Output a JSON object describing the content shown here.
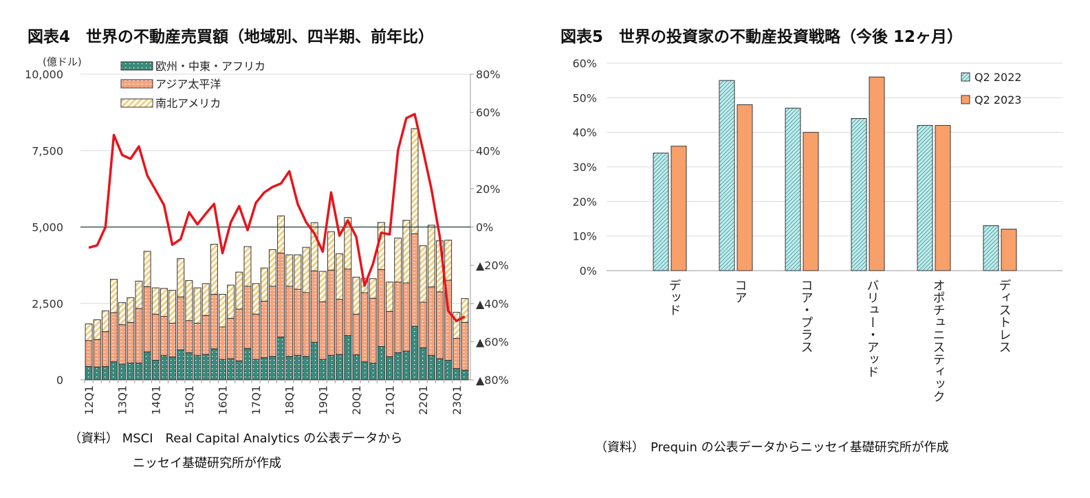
{
  "figure4": {
    "title": "図表4　世界の不動産売買額（地域別、四半期、前年比）",
    "source_line1": "（資料） MSCI　Real Capital Analytics の公表データから",
    "source_line2": "ニッセイ基礎研究所が作成"
  },
  "figure5": {
    "title": "図表5　世界の投資家の不動産投資戦略（今後 12ヶ月）",
    "source": "（資料）　Prequin の公表データからニッセイ基礎研究所が作成"
  },
  "chart_data": [
    {
      "type": "bar",
      "stacked": true,
      "left_unit": "(億ドル)",
      "ylim": [
        0,
        10000
      ],
      "y_ticks": [
        "0",
        "2,500",
        "5,000",
        "7,500",
        "10,000"
      ],
      "y2lim": [
        -80,
        80
      ],
      "y2_ticks": [
        "▲80%",
        "▲60%",
        "▲40%",
        "▲20%",
        "0%",
        "20%",
        "40%",
        "60%",
        "80%"
      ],
      "x_tick_labels": [
        "12Q1",
        "13Q1",
        "14Q1",
        "15Q1",
        "16Q1",
        "17Q1",
        "18Q1",
        "19Q1",
        "20Q1",
        "21Q1",
        "22Q1",
        "23Q1"
      ],
      "categories": [
        "12Q1",
        "12Q2",
        "12Q3",
        "12Q4",
        "13Q1",
        "13Q2",
        "13Q3",
        "13Q4",
        "14Q1",
        "14Q2",
        "14Q3",
        "14Q4",
        "15Q1",
        "15Q2",
        "15Q3",
        "15Q4",
        "16Q1",
        "16Q2",
        "16Q3",
        "16Q4",
        "17Q1",
        "17Q2",
        "17Q3",
        "17Q4",
        "18Q1",
        "18Q2",
        "18Q3",
        "18Q4",
        "19Q1",
        "19Q2",
        "19Q3",
        "19Q4",
        "20Q1",
        "20Q2",
        "20Q3",
        "20Q4",
        "21Q1",
        "21Q2",
        "21Q3",
        "21Q4",
        "22Q1",
        "22Q2",
        "22Q3",
        "22Q4",
        "23Q1",
        "23Q2"
      ],
      "legend_position": "top-left",
      "colors": {
        "emea": "#3a8a7c",
        "apac": "#f4a27c",
        "americas": "#f0cf80",
        "yoy": "#e8141c"
      },
      "series": [
        {
          "name": "欧州・中東・アフリカ",
          "values": [
            440,
            420,
            440,
            590,
            515,
            555,
            555,
            915,
            640,
            795,
            750,
            980,
            890,
            795,
            830,
            1015,
            670,
            690,
            620,
            1025,
            670,
            725,
            770,
            1400,
            770,
            800,
            770,
            1230,
            670,
            800,
            830,
            1450,
            820,
            590,
            550,
            1090,
            760,
            890,
            940,
            1750,
            1050,
            800,
            690,
            640,
            370,
            320
          ]
        },
        {
          "name": "アジア太平洋",
          "values": [
            845,
            900,
            1140,
            1610,
            1290,
            1325,
            1780,
            2135,
            1510,
            1280,
            1105,
            1735,
            1050,
            1060,
            1275,
            1785,
            1060,
            1325,
            1695,
            2040,
            1480,
            1850,
            2295,
            2750,
            2295,
            2165,
            2085,
            2335,
            1885,
            2790,
            1805,
            2175,
            1330,
            2260,
            2120,
            2520,
            1480,
            2310,
            2230,
            3030,
            1490,
            2240,
            2190,
            2620,
            990,
            1560
          ]
        },
        {
          "name": "南北アメリカ",
          "values": [
            545,
            645,
            675,
            1090,
            720,
            810,
            895,
            1155,
            860,
            915,
            1075,
            1250,
            1310,
            1155,
            1045,
            1635,
            1070,
            1085,
            1210,
            1295,
            1000,
            1085,
            1195,
            1215,
            1025,
            1125,
            1480,
            1580,
            995,
            1255,
            1490,
            1685,
            1210,
            460,
            640,
            1540,
            960,
            1440,
            2050,
            3440,
            1850,
            2020,
            1670,
            1310,
            850,
            780
          ]
        },
        {
          "name": "前年比",
          "axis": "right",
          "values": [
            -10.8,
            -9.6,
            0,
            48.2,
            37.7,
            35.7,
            42.2,
            27,
            19.3,
            11.5,
            -9.3,
            -6.3,
            7.7,
            1.4,
            7,
            12.1,
            -13.7,
            2.6,
            10.9,
            -1.6,
            12.7,
            18.1,
            21,
            22.8,
            29.2,
            12.1,
            2.6,
            -3.4,
            -12.9,
            18.1,
            -4.5,
            3.4,
            -5.1,
            -30.7,
            -19.4,
            -3,
            -3.9,
            40.1,
            57,
            59.1,
            40.1,
            19.9,
            -5.1,
            -43.8,
            -49.2,
            -46.8
          ]
        }
      ]
    },
    {
      "type": "bar",
      "ylim": [
        0,
        60
      ],
      "y_ticks": [
        "0%",
        "10%",
        "20%",
        "30%",
        "40%",
        "50%",
        "60%"
      ],
      "categories": [
        "デッド",
        "コア",
        "コア・プラス",
        "バリュー・アッド",
        "オポチュニスティック",
        "ディストレス"
      ],
      "legend_position": "top-right",
      "colors": {
        "q2_2022": "#bfeeee",
        "q2_2023": "#f8a06a"
      },
      "series": [
        {
          "name": "Q2 2022",
          "values": [
            34,
            55,
            47,
            44,
            42,
            13
          ]
        },
        {
          "name": "Q2 2023",
          "values": [
            36,
            48,
            40,
            56,
            42,
            12
          ]
        }
      ]
    }
  ]
}
